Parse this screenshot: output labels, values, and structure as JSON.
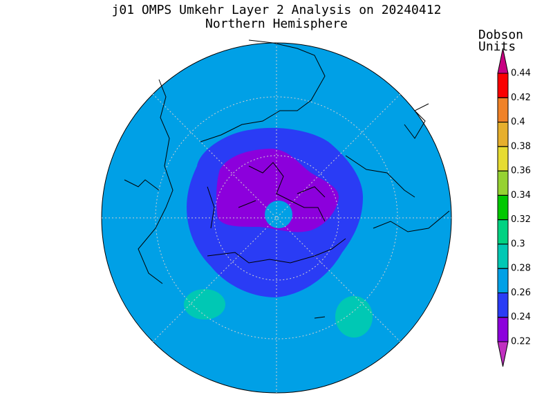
{
  "header": {
    "title": "j01 OMPS Umkehr Layer 2 Analysis on 20240412",
    "subtitle": "Northern Hemisphere"
  },
  "colorbar": {
    "label_lines": [
      "Dobson",
      "Units"
    ],
    "ticks": [
      0.22,
      0.24,
      0.26,
      0.28,
      0.3,
      0.32,
      0.34,
      0.36,
      0.38,
      0.4,
      0.42,
      0.44
    ],
    "colors": [
      "#c030c0",
      "#8c00dc",
      "#2a3cf5",
      "#00a0e6",
      "#00c8b4",
      "#00d282",
      "#00c800",
      "#96d232",
      "#e6dc32",
      "#e6af2d",
      "#f08228",
      "#fa0000",
      "#c80082"
    ]
  }
}
